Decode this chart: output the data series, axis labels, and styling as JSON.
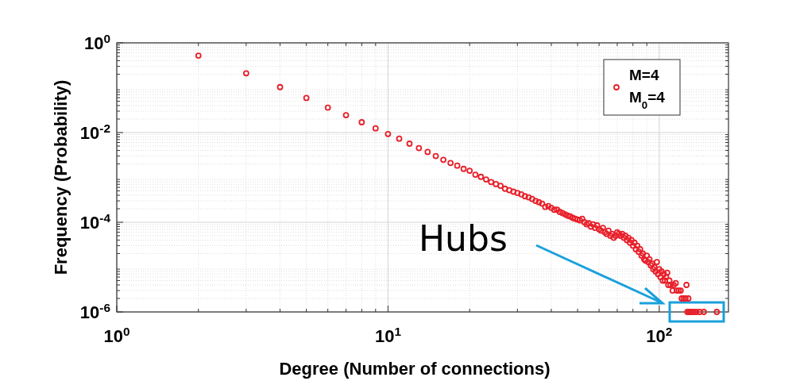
{
  "chart_data": {
    "type": "scatter",
    "xlabel": "Degree (Number of connections)",
    "ylabel": "Frequency (Probability)",
    "log": "xy",
    "grid": true,
    "marker": "circle",
    "legend": "top right",
    "xlim": [
      1,
      180
    ],
    "ylim": [
      1e-06,
      1
    ],
    "xticks": [
      {
        "value": 1,
        "label": "10$^{0}$"
      },
      {
        "value": 10,
        "label": "10$^{1}$"
      },
      {
        "value": 100,
        "label": "10$^{2}$"
      }
    ],
    "yticks": [
      {
        "value": 1e-06,
        "label": "10$^{-6}$"
      },
      {
        "value": 0.0001,
        "label": "10$^{-4}$"
      },
      {
        "value": 0.01,
        "label": "10$^{-2}$"
      },
      {
        "value": 1,
        "label": "10$^{0}$"
      }
    ],
    "annotations": [
      "Hubs"
    ],
    "series": [
      {
        "name": "M=4\nM$_{0}$=4",
        "color": "#e8202a",
        "x": [
          2,
          3,
          4,
          5,
          6,
          7,
          8,
          9,
          10,
          11,
          12,
          13,
          14,
          15,
          16,
          17,
          18,
          19,
          20,
          21,
          22,
          23,
          24,
          25,
          26,
          27,
          28,
          29,
          30,
          31,
          32,
          33,
          34,
          35,
          36,
          37,
          38,
          39,
          40,
          41,
          42,
          43,
          44,
          45,
          46,
          47,
          48,
          49,
          50,
          51,
          52,
          53,
          54,
          55,
          56,
          57,
          58,
          59,
          60,
          61,
          62,
          63,
          64,
          65,
          66,
          67,
          68,
          69,
          70,
          71,
          72,
          73,
          74,
          75,
          76,
          77,
          78,
          79,
          80,
          81,
          82,
          83,
          84,
          85,
          86,
          87,
          88,
          89,
          90,
          91,
          92,
          93,
          94,
          95,
          96,
          97,
          98,
          99,
          100,
          101,
          102,
          103,
          104,
          105,
          106,
          107,
          108,
          109,
          110,
          112,
          113,
          115,
          116,
          118,
          120,
          121,
          123,
          125,
          126,
          128,
          127,
          129,
          130,
          132,
          134,
          137,
          141,
          146,
          163
        ],
        "values": [
          0.52,
          0.21,
          0.103,
          0.059,
          0.036,
          0.0244,
          0.017,
          0.0124,
          0.0093,
          0.0073,
          0.00565,
          0.0045,
          0.0037,
          0.003,
          0.00247,
          0.0021,
          0.00183,
          0.00155,
          0.00141,
          0.00115,
          0.00103,
          0.0009,
          0.00079,
          0.00071,
          0.00065,
          0.00056,
          0.00052,
          0.00048,
          0.00045,
          0.00042,
          0.00038,
          0.00036,
          0.00033,
          0.0003,
          0.00028,
          0.00026,
          0.00022,
          0.00023,
          0.00021,
          0.00019,
          0.00019,
          0.00017,
          0.00016,
          0.00015,
          0.00014,
          0.000135,
          0.000125,
          0.00012,
          0.000115,
          0.00011,
          0.00012,
          0.0001,
          9e-05,
          9.5e-05,
          8e-05,
          9e-05,
          7.5e-05,
          8.5e-05,
          7e-05,
          6.5e-05,
          7.5e-05,
          6e-05,
          5.5e-05,
          6.5e-05,
          5e-05,
          5.5e-05,
          4.5e-05,
          5e-05,
          6e-05,
          5.5e-05,
          5e-05,
          5.5e-05,
          4.5e-05,
          5e-05,
          4e-05,
          4.5e-05,
          3.5e-05,
          4e-05,
          3e-05,
          3.5e-05,
          2.5e-05,
          3e-05,
          2.2e-05,
          2.5e-05,
          1.8e-05,
          2e-05,
          1.5e-05,
          1.4e-05,
          1.8e-05,
          1.3e-05,
          1.5e-05,
          1.1e-05,
          1.2e-05,
          9e-06,
          1e-05,
          8e-06,
          1.3e-05,
          7e-06,
          9e-06,
          6e-06,
          8e-06,
          5e-06,
          7e-06,
          5e-06,
          6e-06,
          7.5e-06,
          4e-06,
          5e-06,
          4e-06,
          3e-06,
          4e-06,
          4.4e-06,
          3e-06,
          3e-06,
          3e-06,
          2e-06,
          2e-06,
          2e-06,
          4e-06,
          2e-06,
          1e-06,
          1e-06,
          1e-06,
          1e-06,
          1e-06,
          1e-06,
          1e-06,
          1e-06,
          1e-06
        ]
      }
    ]
  }
}
